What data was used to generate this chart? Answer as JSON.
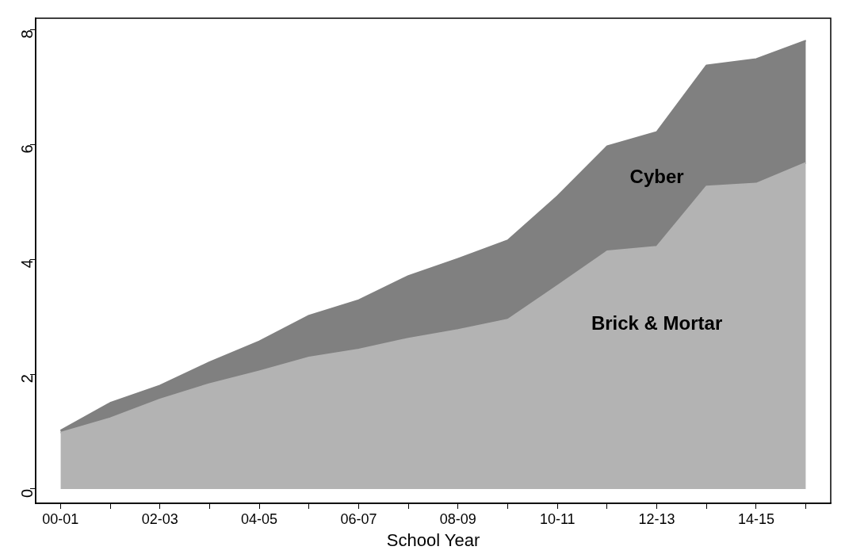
{
  "chart_data": {
    "type": "area",
    "stacked": true,
    "xlabel": "School Year",
    "categories": [
      "00-01",
      null,
      "02-03",
      null,
      "04-05",
      null,
      "06-07",
      null,
      "08-09",
      null,
      "10-11",
      null,
      "12-13",
      null,
      "14-15",
      null
    ],
    "series": [
      {
        "name": "Brick & Mortar",
        "color": "#b3b3b3",
        "values": [
          0.98,
          1.23,
          1.56,
          1.83,
          2.05,
          2.29,
          2.43,
          2.62,
          2.77,
          2.95,
          3.54,
          4.14,
          4.22,
          5.27,
          5.32,
          5.68
        ]
      },
      {
        "name": "Cyber",
        "color": "#808080",
        "values": [
          0.04,
          0.27,
          0.24,
          0.38,
          0.52,
          0.73,
          0.86,
          1.09,
          1.24,
          1.38,
          1.56,
          1.83,
          2.0,
          2.11,
          2.17,
          2.13
        ]
      }
    ],
    "ylim": [
      -0.25,
      8.2
    ],
    "yticks": [
      0,
      2,
      4,
      6,
      8
    ],
    "grid": false,
    "legend": false
  }
}
